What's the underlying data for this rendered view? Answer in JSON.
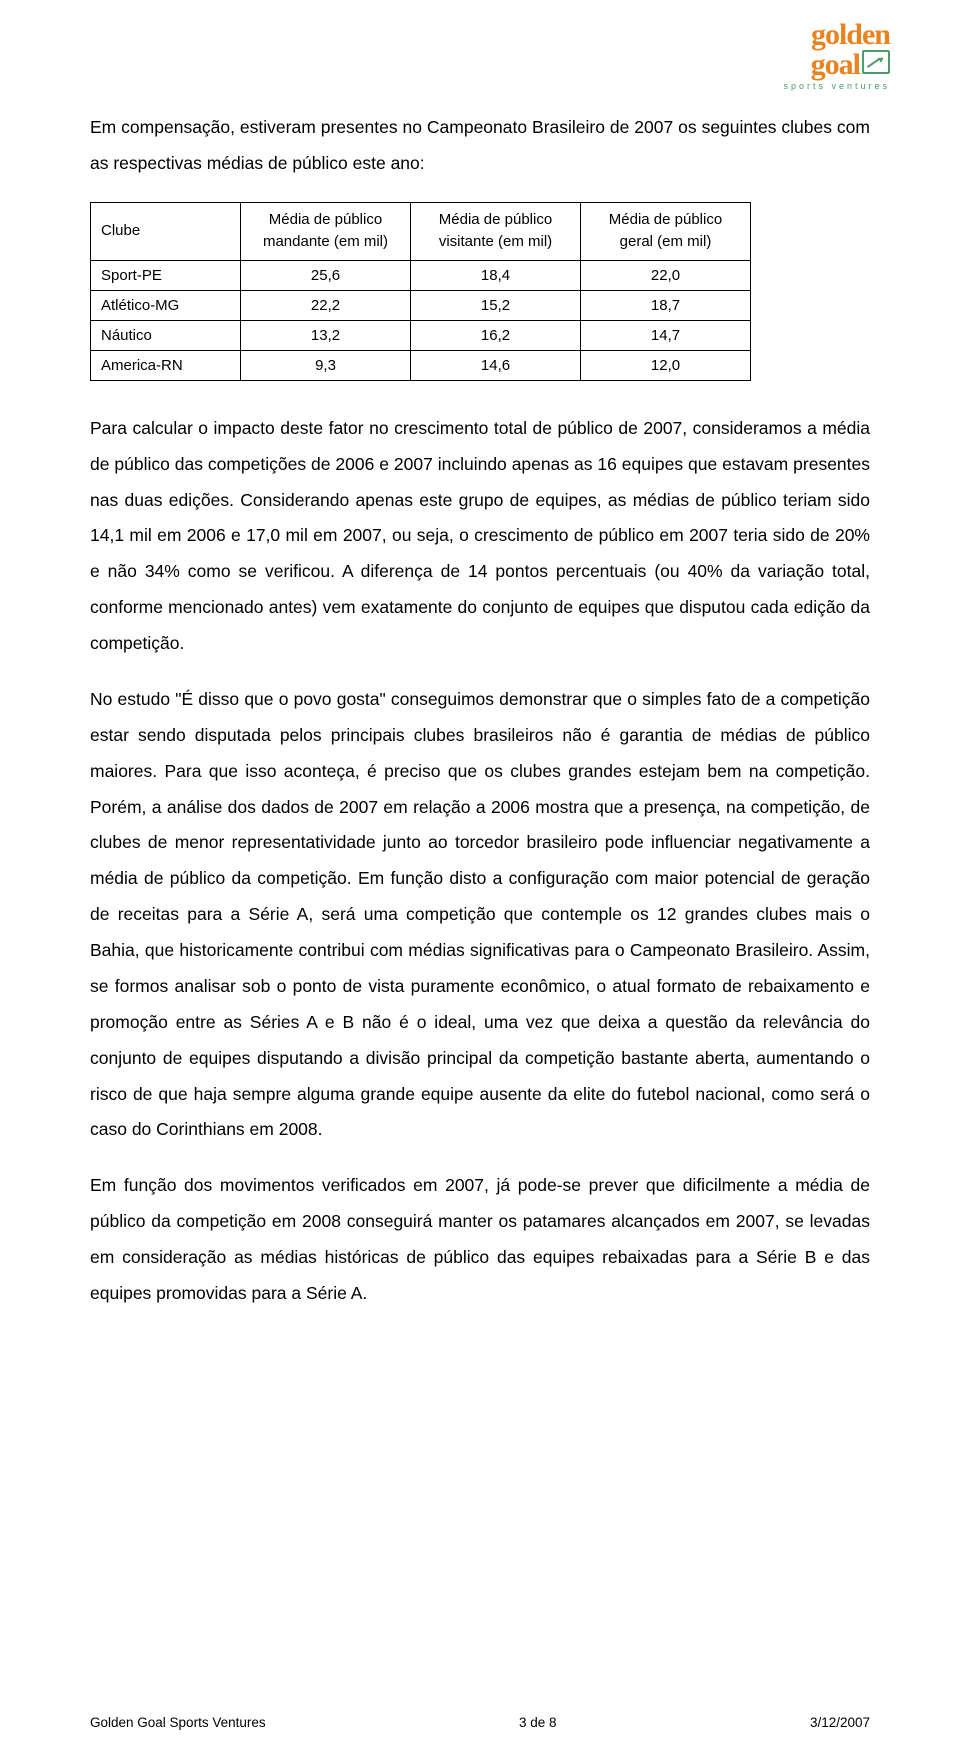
{
  "logo": {
    "line1": "golden",
    "line2": "goal",
    "tagline": "sports ventures",
    "text_color": "#e8831f",
    "accent_color": "#4b9b6e"
  },
  "intro_paragraph": "Em compensação, estiveram presentes no Campeonato Brasileiro de 2007 os seguintes clubes com as respectivas médias de público este ano:",
  "table": {
    "headers": {
      "club": "Clube",
      "mandante_l1": "Média de público",
      "mandante_l2": "mandante (em mil)",
      "visitante_l1": "Média de público",
      "visitante_l2": "visitante (em mil)",
      "geral_l1": "Média de público",
      "geral_l2": "geral (em mil)"
    },
    "rows": [
      {
        "club": "Sport-PE",
        "mandante": "25,6",
        "visitante": "18,4",
        "geral": "22,0"
      },
      {
        "club": "Atlético-MG",
        "mandante": "22,2",
        "visitante": "15,2",
        "geral": "18,7"
      },
      {
        "club": "Náutico",
        "mandante": "13,2",
        "visitante": "16,2",
        "geral": "14,7"
      },
      {
        "club": "America-RN",
        "mandante": "9,3",
        "visitante": "14,6",
        "geral": "12,0"
      }
    ],
    "border_color": "#000000",
    "font_size": 15
  },
  "body_paragraphs": [
    "Para calcular o impacto deste fator no crescimento total de público de 2007, consideramos a média de público das competições de 2006 e 2007 incluindo apenas as 16 equipes que estavam presentes nas duas edições. Considerando apenas este grupo de equipes, as médias de público teriam sido 14,1 mil em 2006 e 17,0 mil em 2007, ou seja, o crescimento de público em 2007 teria sido de 20% e não 34% como se verificou. A diferença de 14 pontos percentuais (ou 40% da variação total, conforme mencionado antes) vem exatamente do conjunto de equipes que disputou cada edição da competição.",
    "No estudo \"É disso que o povo gosta\" conseguimos demonstrar que o simples fato de a competição estar sendo disputada pelos principais clubes brasileiros não é garantia de médias de público maiores. Para que isso aconteça, é preciso que os clubes grandes estejam bem na competição. Porém, a análise dos dados de 2007 em relação a 2006 mostra que a presença, na competição, de clubes de menor representatividade junto ao torcedor brasileiro pode influenciar negativamente a média de público da competição. Em função disto a configuração com maior potencial de geração de receitas para a Série A, será uma competição que contemple os 12 grandes clubes mais o Bahia, que historicamente contribui com médias significativas para o Campeonato Brasileiro. Assim, se formos analisar sob o ponto de vista puramente econômico, o atual formato de rebaixamento e promoção entre as Séries A e B não é o ideal, uma vez que deixa a questão da relevância do conjunto de equipes disputando a divisão principal da competição bastante aberta, aumentando o risco de que haja sempre alguma grande equipe ausente da elite do futebol nacional, como será o caso do Corinthians em 2008.",
    "Em função dos movimentos verificados em 2007, já pode-se prever que dificilmente a média de público da competição em 2008 conseguirá manter os patamares alcançados em 2007, se levadas em consideração as médias históricas de público das equipes rebaixadas para a Série B e das equipes promovidas para a Série A."
  ],
  "footer": {
    "left": "Golden Goal Sports Ventures",
    "center": "3 de 8",
    "right": "3/12/2007"
  },
  "page_style": {
    "background": "#ffffff",
    "text_color": "#000000",
    "body_font_size": 17.5,
    "line_height": 2.05
  }
}
